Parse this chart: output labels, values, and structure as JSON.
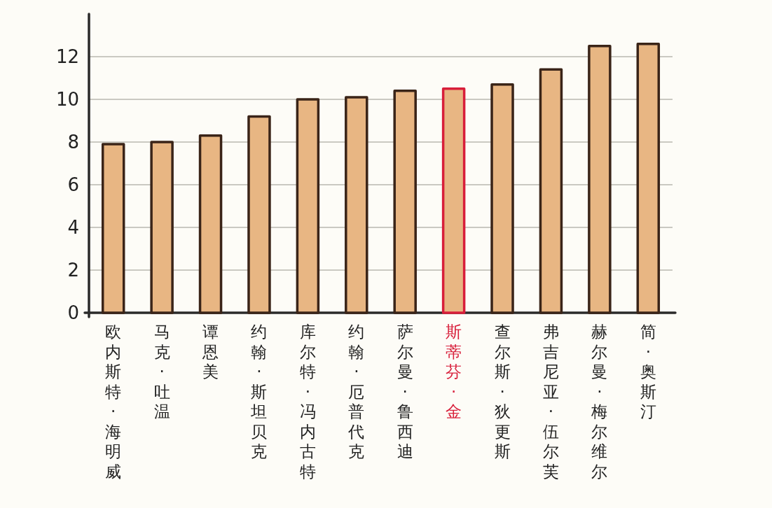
{
  "chart_data": {
    "type": "bar",
    "categories": [
      "欧内斯特·海明威",
      "马克·吐温",
      "谭恩美",
      "约翰·斯坦贝克",
      "库尔特·冯内古特",
      "约翰·厄普代克",
      "萨尔曼·鲁西迪",
      "斯蒂芬·金",
      "查尔斯·狄更斯",
      "弗吉尼亚·伍尔芙",
      "赫尔曼·梅尔维尔",
      "简·奥斯汀"
    ],
    "values": [
      7.9,
      8.0,
      8.3,
      9.2,
      10.0,
      10.1,
      10.4,
      10.5,
      10.7,
      11.4,
      12.5,
      12.6
    ],
    "colors": [
      "#3a2418",
      "#3a2418",
      "#3a2418",
      "#3a2418",
      "#3a2418",
      "#3a2418",
      "#3a2418",
      "#d81e3a",
      "#3a2418",
      "#3a2418",
      "#3a2418",
      "#3a2418"
    ],
    "ylim": [
      0,
      14
    ],
    "yticks": [
      0,
      2,
      4,
      6,
      8,
      10,
      12
    ],
    "grid": "y"
  }
}
